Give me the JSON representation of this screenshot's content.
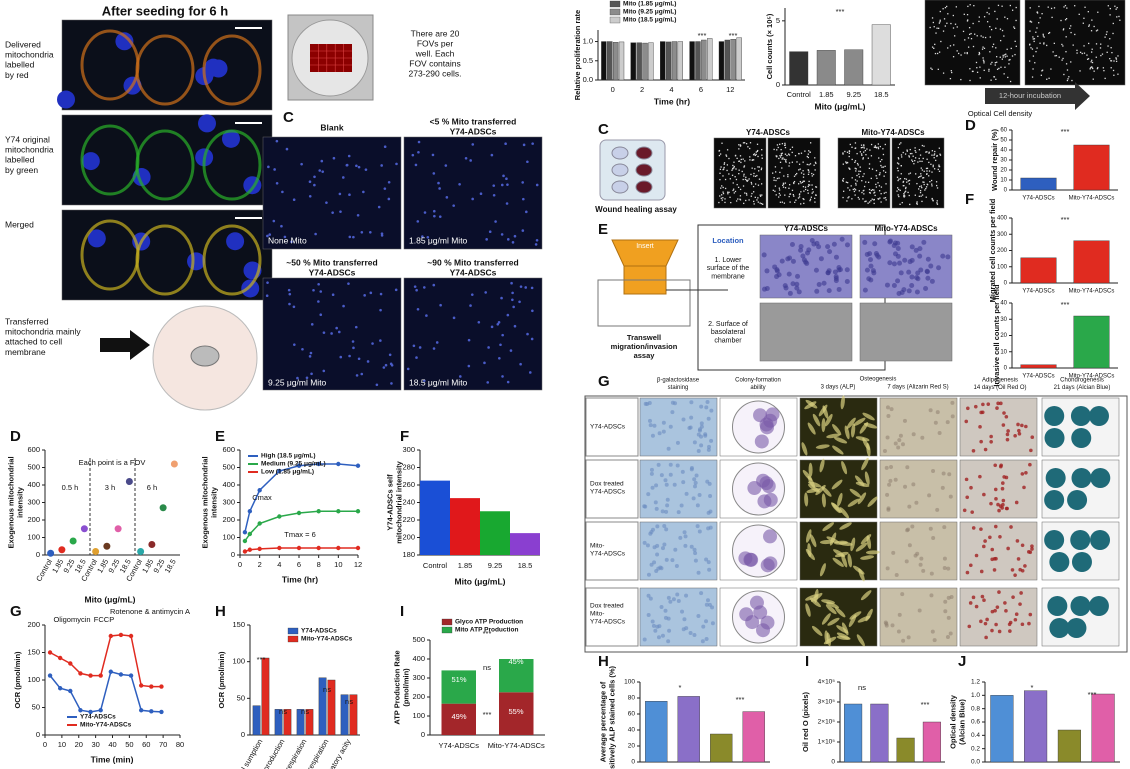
{
  "texts": {
    "seed_title": "After seeding for 6 h",
    "red_label": [
      "Delivered",
      "mitochondria",
      "labelled",
      "by red"
    ],
    "green_label": [
      "Y74 original",
      "mitochondria",
      "labelled",
      "by green"
    ],
    "merged_label": "Merged",
    "attached_label": [
      "Transferred",
      "mitochondria mainly",
      "attached to cell",
      "membrane"
    ],
    "fov_note": [
      "There are 20",
      "FOVs per",
      "well. Each",
      "FOV contains",
      "273-290 cells."
    ],
    "letter_c_top": "C",
    "blank": "Blank",
    "under5": [
      "<5 % Mito transferred",
      "Y74-ADSCs"
    ],
    "about50": [
      "~50 % Mito transferred",
      "Y74-ADSCs"
    ],
    "about90": [
      "~90 % Mito transferred",
      "Y74-ADSCs"
    ],
    "none_mito": "None Mito",
    "mito_185": "1.85 μg/ml Mito",
    "mito_925": "9.25 μg/ml Mito",
    "mito_185b": "18.5 μg/ml Mito",
    "incubation": "12-hour incubation",
    "optical_density": "Optical Cell density",
    "letter_c_right": "C",
    "wound_assay": "Wound healing assay",
    "wound_y74": "Y74-ADSCs",
    "wound_mito": "Mito-Y74-ADSCs",
    "letter_d_right": "D",
    "letter_e_right": "E",
    "letter_f_right": "F",
    "insert": "Insert",
    "location": "Location",
    "location_1": [
      "1. Lower",
      "surface of the",
      "membrane"
    ],
    "location_2": [
      "2. Surface of",
      "basolateral",
      "chamber"
    ],
    "transwell": [
      "Transwell",
      "migration/invasion",
      "assay"
    ],
    "transwell_y74": "Y74-ADSCs",
    "transwell_mito": "Mito-Y74-ADSCs",
    "letter_g_right": "G",
    "col_beta": [
      "β-galactosidase",
      "staining"
    ],
    "col_colony": [
      "Colony-formation",
      "ability"
    ],
    "col_osteo": "Osteogenesis",
    "col_osteo3": "3 days (ALP)",
    "col_osteo7": "7 days (Alizarin Red S)",
    "col_adipo": [
      "Adipogenesis",
      "14 days (Oil Red O)"
    ],
    "col_chondro": [
      "Chondrogenesis",
      "21 days (Alcian Blue)"
    ],
    "row_1": [
      "Y74-ADSCs"
    ],
    "row_2": [
      "Dox treated",
      "Y74-ADSCs"
    ],
    "row_3": [
      "Mito-",
      "Y74-ADSCs"
    ],
    "row_4": [
      "Dox treated",
      "Mito-",
      "Y74-ADSCs"
    ],
    "letter_h_right": "H",
    "letter_i_right": "I",
    "letter_j_right": "J",
    "letter_d_left": "D",
    "letter_e_left": "E",
    "letter_f_left": "F",
    "letter_g_left": "G",
    "letter_h_left": "H",
    "letter_i_left": "I"
  },
  "chart_data": [
    {
      "type": "bar",
      "ylabel": "Relative proliferation rate",
      "xlabel": "Time (hr)",
      "categories": [
        "0",
        "2",
        "4",
        "6",
        "12"
      ],
      "series": [
        {
          "name": "Control (DMEM)",
          "color": "#111111",
          "values": [
            1.0,
            0.97,
            1.0,
            1.0,
            1.0
          ]
        },
        {
          "name": "Mito (1.85 μg/mL)",
          "color": "#555555",
          "values": [
            1.0,
            0.97,
            0.99,
            1.0,
            1.04
          ]
        },
        {
          "name": "Mito (9.25 μg/mL)",
          "color": "#8c8c8c",
          "values": [
            0.98,
            0.96,
            1.0,
            1.04,
            1.06
          ]
        },
        {
          "name": "Mito (18.5 μg/mL)",
          "color": "#cccccc",
          "values": [
            0.99,
            0.97,
            1.0,
            1.08,
            1.1
          ]
        }
      ],
      "ylim": [
        0,
        1.3
      ],
      "yticks": [
        {
          "value": 0,
          "label": "0.0"
        },
        {
          "value": 0.5,
          "label": "0.5"
        },
        {
          "value": 1,
          "label": "1.0"
        }
      ],
      "legend": "top",
      "annotations": [
        "***",
        "***"
      ]
    },
    {
      "type": "bar",
      "ylabel": "Cell counts (× 10⁵)",
      "xlabel": "Mito (μg/mL)",
      "categories": [
        "Control",
        "1.85",
        "9.25",
        "18.5"
      ],
      "values": [
        2.6,
        2.7,
        2.75,
        4.7
      ],
      "colors": [
        "#333333",
        "#8a8a8a",
        "#8a8a8a",
        "#dddddd"
      ],
      "ylim": [
        0,
        6
      ],
      "yticks": [
        0,
        5
      ],
      "annotations": [
        "***"
      ]
    },
    {
      "type": "bar",
      "ylabel": "Wound repair (%)",
      "categories": [
        "Y74-ADSCs",
        "Mito-Y74-ADSCs"
      ],
      "values": [
        12,
        45
      ],
      "colors": [
        "#2e5fbf",
        "#e02b20"
      ],
      "ylim": [
        0,
        60
      ],
      "yticks": [
        0,
        10,
        20,
        30,
        40,
        50,
        60
      ],
      "annotations": [
        "***"
      ]
    },
    {
      "type": "bar",
      "ylabel": "Migrated cell counts per field",
      "categories": [
        "Y74-ADSCs",
        "Mito-Y74-ADSCs"
      ],
      "values": [
        155,
        260
      ],
      "colors": [
        "#e02b20",
        "#e02b20"
      ],
      "ylim": [
        0,
        400
      ],
      "yticks": [
        0,
        100,
        200,
        300,
        400
      ],
      "annotations": [
        "***"
      ]
    },
    {
      "type": "bar",
      "ylabel": "Invasive cell counts per field",
      "categories": [
        "Y74-ADSCs",
        "Mito-Y74-ADSCs"
      ],
      "values": [
        2,
        32
      ],
      "colors": [
        "#e02b20",
        "#2aa84a"
      ],
      "ylim": [
        0,
        40
      ],
      "yticks": [
        0,
        10,
        20,
        30,
        40
      ],
      "annotations": [
        "***"
      ]
    },
    {
      "type": "scatter",
      "ylabel": [
        "Exogenous mitochondrial",
        "intensity"
      ],
      "xlabel": "Mito (μg/mL)",
      "categories": [
        "Control",
        "1.85",
        "9.25",
        "18.5",
        "Control",
        "1.85",
        "9.25",
        "18.5",
        "Control",
        "1.85",
        "9.25",
        "18.5"
      ],
      "values": [
        10,
        30,
        80,
        150,
        20,
        50,
        150,
        420,
        20,
        60,
        270,
        520
      ],
      "colors": [
        "#2e5fbf",
        "#e02b20",
        "#2aa84a",
        "#8a4fd0",
        "#e0a030",
        "#6a3a20",
        "#e05fa8",
        "#4a4a8a",
        "#2aa8a8",
        "#8a2a2a",
        "#2a8a4a",
        "#f0a070"
      ],
      "ylim": [
        0,
        600
      ],
      "yticks": [
        0,
        100,
        200,
        300,
        400,
        500,
        600
      ],
      "annotations": [
        "Each point is a FOV",
        "0.5 h",
        "3 h",
        "6 h"
      ]
    },
    {
      "type": "line",
      "ylabel": [
        "Exogenous mitochondrial",
        "intensity"
      ],
      "xlabel": "Time (hr)",
      "x": [
        0.5,
        1,
        2,
        4,
        6,
        8,
        10,
        12
      ],
      "series": [
        {
          "name": "High (18.5 μg/mL)",
          "color": "#2e5fbf",
          "values": [
            130,
            250,
            370,
            480,
            510,
            520,
            520,
            510
          ]
        },
        {
          "name": "Medium (9.25 μg/mL)",
          "color": "#2aa84a",
          "values": [
            80,
            120,
            180,
            220,
            240,
            250,
            250,
            250
          ]
        },
        {
          "name": "Low (1.85 μg/mL)",
          "color": "#e02b20",
          "values": [
            20,
            30,
            35,
            40,
            40,
            40,
            40,
            40
          ]
        }
      ],
      "xlim": [
        0,
        12
      ],
      "xticks": [
        0,
        2,
        4,
        6,
        8,
        10,
        12
      ],
      "ylim": [
        0,
        600
      ],
      "yticks": [
        0,
        100,
        200,
        300,
        400,
        500,
        600
      ],
      "legend": "upper left",
      "annotations": [
        "Cmax",
        "Tmax = 6"
      ]
    },
    {
      "type": "area",
      "ylabel": [
        "Y74-ADSCs self",
        "mitochondrial intensity"
      ],
      "xlabel": "Mito (μg/mL)",
      "categories": [
        "Control",
        "1.85",
        "9.25",
        "18.5"
      ],
      "values": [
        265,
        245,
        230,
        205
      ],
      "colors": [
        "#1a4fd6",
        "#e0181b",
        "#18a830",
        "#8a3fd0"
      ],
      "ylim": [
        180,
        300
      ],
      "yticks": [
        180,
        200,
        220,
        240,
        260,
        280,
        300
      ]
    },
    {
      "type": "line",
      "ylabel": "OCR (pmol/min)",
      "xlabel": "Time (min)",
      "x": [
        3,
        9,
        15,
        21,
        27,
        33,
        39,
        45,
        51,
        57,
        63,
        69
      ],
      "series": [
        {
          "name": "Y74-ADSCs",
          "color": "#2e5fbf",
          "values": [
            108,
            85,
            80,
            45,
            42,
            45,
            115,
            110,
            108,
            45,
            43,
            42
          ]
        },
        {
          "name": "Mito-Y74-ADSCs",
          "color": "#e02b20",
          "values": [
            150,
            140,
            130,
            112,
            108,
            108,
            180,
            182,
            180,
            90,
            88,
            88
          ]
        }
      ],
      "xlim": [
        0,
        80
      ],
      "xticks": [
        0,
        10,
        20,
        30,
        40,
        50,
        60,
        70,
        80
      ],
      "ylim": [
        0,
        200
      ],
      "yticks": [
        0,
        50,
        100,
        150,
        200
      ],
      "legend": "lower left",
      "annotations": [
        "Oligomycin",
        "FCCP",
        "Rotenone & antimycin A"
      ]
    },
    {
      "type": "bar",
      "ylabel": "OCR (pmol/min)",
      "categories": [
        "itochondrial sumption",
        "P production",
        "l respiration",
        "l respiration",
        "respiratory acity"
      ],
      "series": [
        {
          "name": "Y74-ADSCs",
          "color": "#2e5fbf",
          "values": [
            40,
            35,
            35,
            78,
            55
          ]
        },
        {
          "name": "Mito-Y74-ADSCs",
          "color": "#e02b20",
          "values": [
            105,
            35,
            35,
            75,
            55
          ]
        }
      ],
      "ylim": [
        0,
        150
      ],
      "yticks": [
        0,
        50,
        100,
        150
      ],
      "legend": "upper right",
      "annotations": [
        "***",
        "ns",
        "ns",
        "ns",
        "ns"
      ]
    },
    {
      "type": "bar",
      "stacked": true,
      "ylabel": [
        "ATP Production Rate",
        "(pmol/min)"
      ],
      "categories": [
        "Y74-ADSCs",
        "Mito-Y74-ADSCs"
      ],
      "series": [
        {
          "name": "Glyco ATP Production",
          "color": "#a3262a",
          "values": [
            165,
            225
          ]
        },
        {
          "name": "Mito ATP Production",
          "color": "#2aa84a",
          "values": [
            175,
            175
          ]
        }
      ],
      "ylim": [
        0,
        500
      ],
      "yticks": [
        0,
        100,
        200,
        300,
        400,
        500
      ],
      "legend": "top",
      "annotations": [
        "***",
        "ns",
        "***",
        "51%",
        "49%",
        "45%",
        "55%"
      ]
    },
    {
      "type": "bar",
      "ylabel": [
        "Average percentage of",
        "positively ALP stained cells (%)"
      ],
      "categories": [
        null,
        null,
        null,
        null
      ],
      "values": [
        76,
        82,
        35,
        63
      ],
      "colors": [
        "#4f8fd6",
        "#8a6fc8",
        "#8a8a2a",
        "#e05fa8"
      ],
      "ylim": [
        0,
        100
      ],
      "yticks": [
        0,
        20,
        40,
        60,
        80,
        100
      ],
      "annotations": [
        "*",
        "***"
      ]
    },
    {
      "type": "bar",
      "ylabel": "Oil red O (pixels)",
      "categories": [
        null,
        null,
        null,
        null
      ],
      "values": [
        290000,
        290000,
        120000,
        200000
      ],
      "colors": [
        "#4f8fd6",
        "#8a6fc8",
        "#8a8a2a",
        "#e05fa8"
      ],
      "ylim": [
        0,
        400000
      ],
      "yticks": [
        0,
        {
          "value": 100000,
          "label": "1×10⁵"
        },
        {
          "value": 200000,
          "label": "2×10⁵"
        },
        {
          "value": 300000,
          "label": "3×10⁵"
        },
        {
          "value": 400000,
          "label": "4×10⁵"
        }
      ],
      "annotations": [
        "ns",
        "***"
      ]
    },
    {
      "type": "bar",
      "ylabel": [
        "Optical density",
        "(Alcian Blue)"
      ],
      "categories": [
        null,
        null,
        null,
        null
      ],
      "values": [
        1.0,
        1.07,
        0.48,
        1.02
      ],
      "colors": [
        "#4f8fd6",
        "#8a6fc8",
        "#8a8a2a",
        "#e05fa8"
      ],
      "ylim": [
        0,
        1.2
      ],
      "yticks": [
        {
          "value": 0,
          "label": "0.0"
        },
        {
          "value": 0.2,
          "label": "0.2"
        },
        {
          "value": 0.4,
          "label": "0.4"
        },
        {
          "value": 0.6,
          "label": "0.6"
        },
        {
          "value": 0.8,
          "label": "0.8"
        },
        {
          "value": 1,
          "label": "1.0"
        },
        {
          "value": 1.2,
          "label": "1.2"
        }
      ],
      "annotations": [
        "*",
        "***"
      ]
    }
  ]
}
